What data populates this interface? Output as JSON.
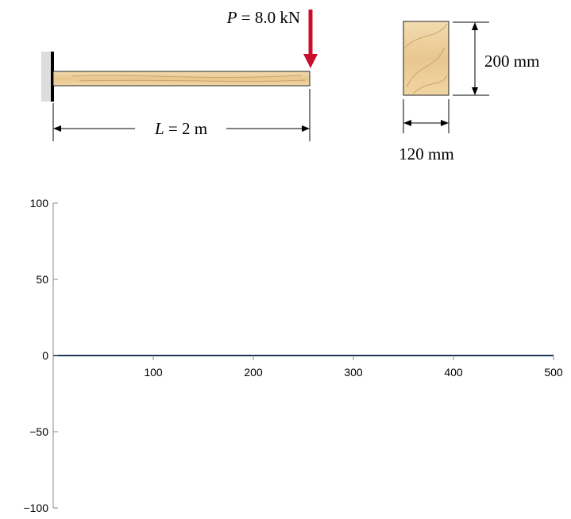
{
  "diagram": {
    "load": {
      "symbol": "P",
      "text": " = 8.0 kN"
    },
    "span": {
      "symbol": "L",
      "text": " = 2 m"
    },
    "height": "200 mm",
    "width": "120 mm"
  },
  "plot": {
    "xlim": [
      0,
      500
    ],
    "ylim": [
      -100,
      100
    ],
    "xticks": [
      100,
      200,
      300,
      400,
      500
    ],
    "yticks": [
      {
        "value": -100,
        "label": "−100"
      },
      {
        "value": -50,
        "label": "−50"
      },
      0,
      50,
      100
    ]
  }
}
